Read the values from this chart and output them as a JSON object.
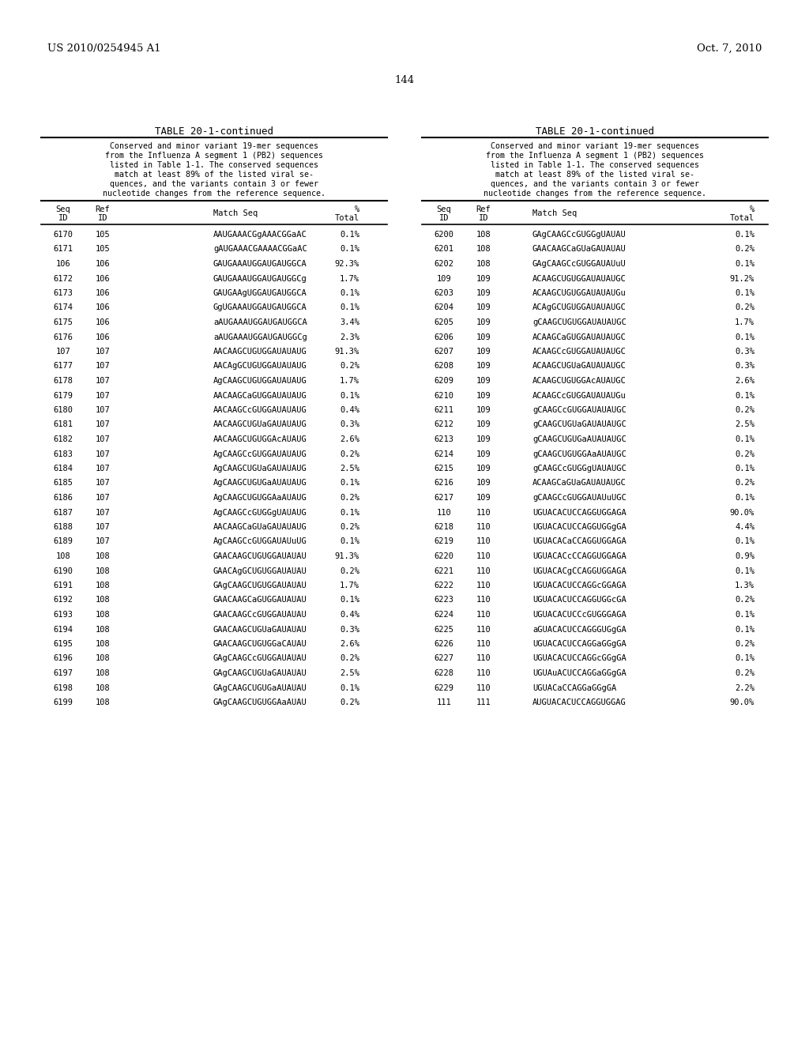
{
  "header_left": "US 2010/0254945 A1",
  "header_right": "Oct. 7, 2010",
  "page_number": "144",
  "table_title": "TABLE 20-1-continued",
  "table_description": "Conserved and minor variant 19-mer sequences\nfrom the Influenza A segment 1 (PB2) sequences\nlisted in Table 1-1. The conserved sequences\nmatch at least 89% of the listed viral se-\nquences, and the variants contain 3 or fewer\nnucleotide changes from the reference sequence.",
  "col_headers": [
    "Seq\nID",
    "Ref\nID",
    "Match Seq",
    "%\nTotal"
  ],
  "left_data": [
    [
      "6170",
      "105",
      "AAUGAAACGgAAACGGaAC",
      "0.1%"
    ],
    [
      "6171",
      "105",
      "gAUGAAACGAAAACGGaAC",
      "0.1%"
    ],
    [
      "106",
      "106",
      "GAUGAAAUGGAUGAUGGCA",
      "92.3%"
    ],
    [
      "6172",
      "106",
      "GAUGAAAUGGAUGAUGGCg",
      "1.7%"
    ],
    [
      "6173",
      "106",
      "GAUGAAgUGGAUGAUGGCA",
      "0.1%"
    ],
    [
      "6174",
      "106",
      "GgUGAAAUGGAUGAUGGCA",
      "0.1%"
    ],
    [
      "6175",
      "106",
      "aAUGAAAUGGAUGAUGGCA",
      "3.4%"
    ],
    [
      "6176",
      "106",
      "aAUGAAAUGGAUGAUGGCg",
      "2.3%"
    ],
    [
      "107",
      "107",
      "AACAAGCUGUGGAUAUAUG",
      "91.3%"
    ],
    [
      "6177",
      "107",
      "AACAgGCUGUGGAUAUAUG",
      "0.2%"
    ],
    [
      "6178",
      "107",
      "AgCAAGCUGUGGAUAUAUG",
      "1.7%"
    ],
    [
      "6179",
      "107",
      "AACAAGCaGUGGAUAUAUG",
      "0.1%"
    ],
    [
      "6180",
      "107",
      "AACAAGCcGUGGAUAUAUG",
      "0.4%"
    ],
    [
      "6181",
      "107",
      "AACAAGCUGUaGAUAUAUG",
      "0.3%"
    ],
    [
      "6182",
      "107",
      "AACAAGCUGUGGAcAUAUG",
      "2.6%"
    ],
    [
      "6183",
      "107",
      "AgCAAGCcGUGGAUAUAUG",
      "0.2%"
    ],
    [
      "6184",
      "107",
      "AgCAAGCUGUaGAUAUAUG",
      "2.5%"
    ],
    [
      "6185",
      "107",
      "AgCAAGCUGUGaAUAUAUG",
      "0.1%"
    ],
    [
      "6186",
      "107",
      "AgCAAGCUGUGGAaAUAUG",
      "0.2%"
    ],
    [
      "6187",
      "107",
      "AgCAAGCcGUGGgUAUAUG",
      "0.1%"
    ],
    [
      "6188",
      "107",
      "AACAAGCaGUaGAUAUAUG",
      "0.2%"
    ],
    [
      "6189",
      "107",
      "AgCAAGCcGUGGAUAUuUG",
      "0.1%"
    ],
    [
      "108",
      "108",
      "GAACAAGCUGUGGAUAUAU",
      "91.3%"
    ],
    [
      "6190",
      "108",
      "GAACAgGCUGUGGAUAUAU",
      "0.2%"
    ],
    [
      "6191",
      "108",
      "GAgCAAGCUGUGGAUAUAU",
      "1.7%"
    ],
    [
      "6192",
      "108",
      "GAACAAGCaGUGGAUAUAU",
      "0.1%"
    ],
    [
      "6193",
      "108",
      "GAACAAGCcGUGGAUAUAU",
      "0.4%"
    ],
    [
      "6194",
      "108",
      "GAACAAGCUGUaGAUAUAU",
      "0.3%"
    ],
    [
      "6195",
      "108",
      "GAACAAGCUGUGGaCAUAU",
      "2.6%"
    ],
    [
      "6196",
      "108",
      "GAgCAAGCcGUGGAUAUAU",
      "0.2%"
    ],
    [
      "6197",
      "108",
      "GAgCAAGCUGUaGAUAUAU",
      "2.5%"
    ],
    [
      "6198",
      "108",
      "GAgCAAGCUGUGaAUAUAU",
      "0.1%"
    ],
    [
      "6199",
      "108",
      "GAgCAAGCUGUGGAaAUAU",
      "0.2%"
    ]
  ],
  "right_data": [
    [
      "6200",
      "108",
      "GAgCAAGCcGUGGgUAUAU",
      "0.1%"
    ],
    [
      "6201",
      "108",
      "GAACAAGCaGUaGAUAUAU",
      "0.2%"
    ],
    [
      "6202",
      "108",
      "GAgCAAGCcGUGGAUAUuU",
      "0.1%"
    ],
    [
      "109",
      "109",
      "ACAAGCUGUGGAUAUAUGC",
      "91.2%"
    ],
    [
      "6203",
      "109",
      "ACAAGCUGUGGAUAUAUGu",
      "0.1%"
    ],
    [
      "6204",
      "109",
      "ACAgGCUGUGGAUAUAUGC",
      "0.2%"
    ],
    [
      "6205",
      "109",
      "gCAAGCUGUGGAUAUAUGC",
      "1.7%"
    ],
    [
      "6206",
      "109",
      "ACAAGCaGUGGAUAUAUGC",
      "0.1%"
    ],
    [
      "6207",
      "109",
      "ACAAGCcGUGGAUAUAUGC",
      "0.3%"
    ],
    [
      "6208",
      "109",
      "ACAAGCUGUaGAUAUAUGC",
      "0.3%"
    ],
    [
      "6209",
      "109",
      "ACAAGCUGUGGAcAUAUGC",
      "2.6%"
    ],
    [
      "6210",
      "109",
      "ACAAGCcGUGGAUAUAUGu",
      "0.1%"
    ],
    [
      "6211",
      "109",
      "gCAAGCcGUGGAUAUAUGC",
      "0.2%"
    ],
    [
      "6212",
      "109",
      "gCAAGCUGUaGAUAUAUGC",
      "2.5%"
    ],
    [
      "6213",
      "109",
      "gCAAGCUGUGaAUAUAUGC",
      "0.1%"
    ],
    [
      "6214",
      "109",
      "gCAAGCUGUGGAaAUAUGC",
      "0.2%"
    ],
    [
      "6215",
      "109",
      "gCAAGCcGUGGgUAUAUGC",
      "0.1%"
    ],
    [
      "6216",
      "109",
      "ACAAGCaGUaGAUAUAUGC",
      "0.2%"
    ],
    [
      "6217",
      "109",
      "gCAAGCcGUGGAUAUuUGC",
      "0.1%"
    ],
    [
      "110",
      "110",
      "UGUACACUCCAGGUGGAGA",
      "90.0%"
    ],
    [
      "6218",
      "110",
      "UGUACACUCCAGGUGGgGA",
      "4.4%"
    ],
    [
      "6219",
      "110",
      "UGUACACaCCAGGUGGAGA",
      "0.1%"
    ],
    [
      "6220",
      "110",
      "UGUACACcCCAGGUGGAGA",
      "0.9%"
    ],
    [
      "6221",
      "110",
      "UGUACACgCCAGGUGGAGA",
      "0.1%"
    ],
    [
      "6222",
      "110",
      "UGUACACUCCAGGcGGAGA",
      "1.3%"
    ],
    [
      "6223",
      "110",
      "UGUACACUCCAGGUGGcGA",
      "0.2%"
    ],
    [
      "6224",
      "110",
      "UGUACACUCCcGUGGGAGA",
      "0.1%"
    ],
    [
      "6225",
      "110",
      "aGUACACUCCAGGGUGgGA",
      "0.1%"
    ],
    [
      "6226",
      "110",
      "UGUACACUCCAGGaGGgGA",
      "0.2%"
    ],
    [
      "6227",
      "110",
      "UGUACACUCCAGGcGGgGA",
      "0.1%"
    ],
    [
      "6228",
      "110",
      "UGUAuACUCCAGGaGGgGA",
      "0.2%"
    ],
    [
      "6229",
      "110",
      "UGUACaCCAGGaGGgGA",
      "2.2%"
    ],
    [
      "111",
      "111",
      "AUGUACACUCCAGGUGGAG",
      "90.0%"
    ]
  ],
  "bg_color": "#ffffff",
  "text_color": "#000000",
  "font_size": 7.5,
  "header_font_size": 9.5,
  "title_font_size": 9.0
}
